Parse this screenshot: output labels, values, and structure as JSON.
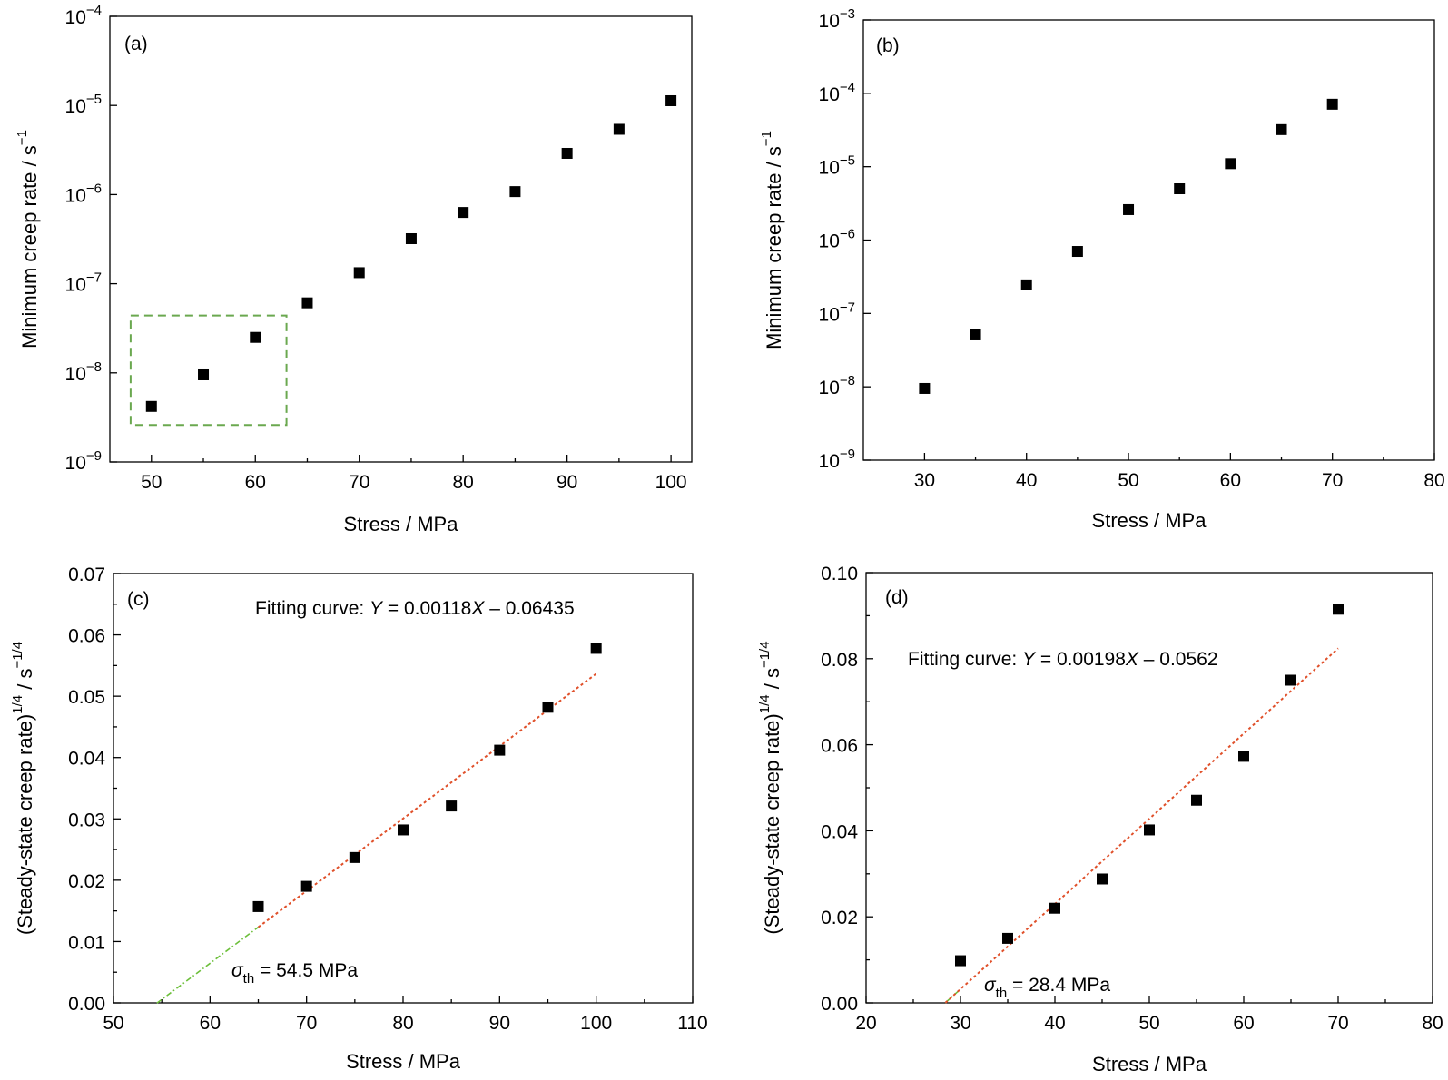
{
  "chart_data": [
    {
      "type": "scatter",
      "panel_label": "(a)",
      "xlabel": "Stress / MPa",
      "ylabel": "Minimum creep rate / s",
      "ylabel_sup": "−1",
      "xscale": "linear",
      "yscale": "log",
      "xlim": [
        46,
        102
      ],
      "ylim": [
        1e-09,
        0.0001
      ],
      "xticks": [
        50,
        60,
        70,
        80,
        90,
        100
      ],
      "yticks": [
        {
          "base": "10",
          "exp": "-9"
        },
        {
          "base": "10",
          "exp": "-8"
        },
        {
          "base": "10",
          "exp": "-7"
        },
        {
          "base": "10",
          "exp": "-6"
        },
        {
          "base": "10",
          "exp": "-5"
        },
        {
          "base": "10",
          "exp": "-4"
        }
      ],
      "x": [
        50,
        55,
        60,
        65,
        70,
        75,
        80,
        85,
        90,
        95,
        100
      ],
      "y": [
        4.2e-09,
        9.5e-09,
        2.5e-08,
        6.1e-08,
        1.33e-07,
        3.2e-07,
        6.3e-07,
        1.08e-06,
        2.9e-06,
        5.4e-06,
        1.13e-05
      ],
      "highlight_box": {
        "x": [
          48,
          63
        ],
        "y": [
          2.6e-09,
          4.4e-08
        ],
        "color": "#6aa84f"
      }
    },
    {
      "type": "scatter",
      "panel_label": "(b)",
      "xlabel": "Stress / MPa",
      "ylabel": "Minimum creep rate / s",
      "ylabel_sup": "−1",
      "xscale": "linear",
      "yscale": "log",
      "xlim": [
        24,
        80
      ],
      "ylim": [
        1e-09,
        0.001
      ],
      "xticks": [
        30,
        40,
        50,
        60,
        70,
        80
      ],
      "yticks": [
        {
          "base": "10",
          "exp": "-9"
        },
        {
          "base": "10",
          "exp": "-8"
        },
        {
          "base": "10",
          "exp": "-7"
        },
        {
          "base": "10",
          "exp": "-6"
        },
        {
          "base": "10",
          "exp": "-5"
        },
        {
          "base": "10",
          "exp": "-4"
        },
        {
          "base": "10",
          "exp": "-3"
        }
      ],
      "x": [
        30,
        35,
        40,
        45,
        50,
        55,
        60,
        65,
        70
      ],
      "y": [
        9.5e-09,
        5.1e-08,
        2.45e-07,
        7e-07,
        2.6e-06,
        5e-06,
        1.1e-05,
        3.2e-05,
        7.1e-05
      ]
    },
    {
      "type": "scatter",
      "panel_label": "(c)",
      "xlabel": "Stress / MPa",
      "ylabel": "(Steady-state creep rate)",
      "ylabel_sup": "1/4",
      "ylabel_unit": " / s",
      "ylabel_unit_sup": "−1/4",
      "xscale": "linear",
      "yscale": "linear",
      "xlim": [
        50,
        110
      ],
      "ylim": [
        0,
        0.07
      ],
      "xticks": [
        "50",
        "60",
        "70",
        "80",
        "90",
        "100",
        "110"
      ],
      "yticks": [
        "0.00",
        "0.01",
        "0.02",
        "0.03",
        "0.04",
        "0.05",
        "0.06",
        "0.07"
      ],
      "x": [
        65,
        70,
        75,
        80,
        85,
        90,
        95,
        100
      ],
      "y": [
        0.0157,
        0.019,
        0.0237,
        0.0282,
        0.0321,
        0.0412,
        0.0482,
        0.0578
      ],
      "fit": {
        "slope": 0.00118,
        "intercept": -0.06435,
        "x_range": [
          65,
          100
        ],
        "color": "#e0502a"
      },
      "extrapolation": {
        "x_range": [
          54.5,
          65
        ],
        "color": "#6cbf3a"
      },
      "fit_text": {
        "prefix": "Fitting curve: ",
        "var_y": "Y",
        "mid": " = 0.00118",
        "var_x": "X",
        "suffix": " – 0.06435"
      },
      "threshold_text": {
        "symbol": "σ",
        "sub": "th",
        "value": " = 54.5 MPa"
      }
    },
    {
      "type": "scatter",
      "panel_label": "(d)",
      "xlabel": "Stress / MPa",
      "ylabel": "(Steady-state creep rate)",
      "ylabel_sup": "1/4",
      "ylabel_unit": " / s",
      "ylabel_unit_sup": "−1/4",
      "xscale": "linear",
      "yscale": "linear",
      "xlim": [
        20,
        80
      ],
      "ylim": [
        0,
        0.1
      ],
      "xticks": [
        "20",
        "30",
        "40",
        "50",
        "60",
        "70",
        "80"
      ],
      "yticks": [
        "0.00",
        "0.02",
        "0.04",
        "0.06",
        "0.08",
        "0.10"
      ],
      "x": [
        30,
        35,
        40,
        45,
        50,
        55,
        60,
        65,
        70
      ],
      "y": [
        0.0098,
        0.015,
        0.022,
        0.0288,
        0.0402,
        0.0471,
        0.0573,
        0.075,
        0.0915
      ],
      "fit": {
        "slope": 0.00198,
        "intercept": -0.0562,
        "x_range": [
          28.4,
          70
        ],
        "color": "#e0502a"
      },
      "extrapolation": {
        "x_range": [
          28.4,
          30
        ],
        "color": "#6cbf3a"
      },
      "fit_text": {
        "prefix": "Fitting curve: ",
        "var_y": "Y",
        "mid": " = 0.00198",
        "var_x": "X",
        "suffix": " – 0.0562"
      },
      "threshold_text": {
        "symbol": "σ",
        "sub": "th",
        "value": " = 28.4 MPa"
      }
    }
  ]
}
